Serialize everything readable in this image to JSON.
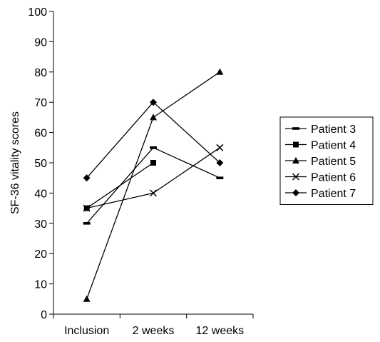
{
  "chart_data": {
    "type": "line",
    "title": "",
    "xlabel": "",
    "ylabel": "SF-36 vitality scores",
    "categories": [
      "Inclusion",
      "2 weeks",
      "12 weeks"
    ],
    "ylim": [
      0,
      100
    ],
    "yticks": [
      0,
      10,
      20,
      30,
      40,
      50,
      60,
      70,
      80,
      90,
      100
    ],
    "grid": false,
    "legend_position": "right",
    "series": [
      {
        "name": "Patient 3",
        "marker": "dash",
        "values": [
          30,
          55,
          45
        ]
      },
      {
        "name": "Patient 4",
        "marker": "square",
        "values": [
          35,
          50,
          null
        ]
      },
      {
        "name": "Patient 5",
        "marker": "triangle",
        "values": [
          5,
          65,
          80
        ]
      },
      {
        "name": "Patient 6",
        "marker": "cross",
        "values": [
          35,
          40,
          55
        ]
      },
      {
        "name": "Patient 7",
        "marker": "diamond",
        "values": [
          45,
          70,
          50
        ]
      }
    ],
    "colors": {
      "line": "#000000",
      "background": "#ffffff"
    }
  }
}
